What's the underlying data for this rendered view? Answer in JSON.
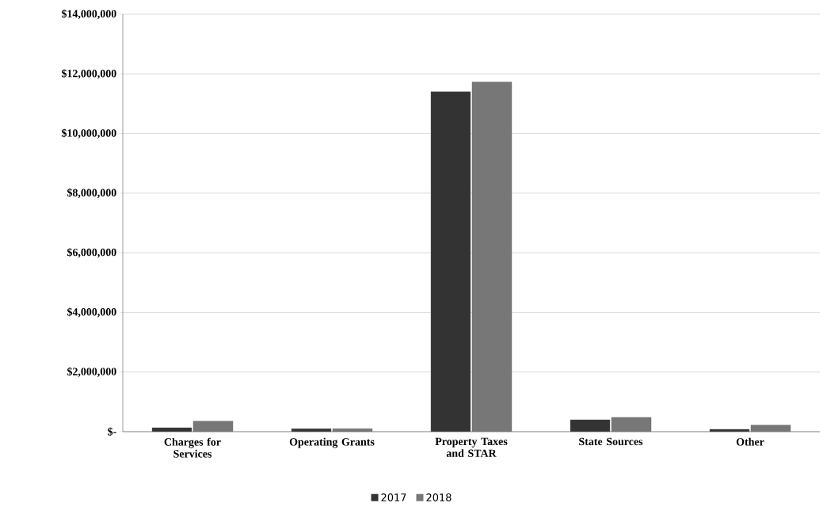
{
  "chart_data": {
    "type": "bar",
    "categories": [
      "Charges for Services",
      "Operating Grants",
      "Property Taxes and STAR",
      "State Sources",
      "Other"
    ],
    "series": [
      {
        "name": "2017",
        "color": "#333333",
        "values": [
          130000,
          100000,
          11400000,
          400000,
          80000
        ]
      },
      {
        "name": "2018",
        "color": "#777777",
        "values": [
          350000,
          100000,
          11730000,
          480000,
          220000
        ]
      }
    ],
    "ylim": [
      0,
      14000000
    ],
    "yticks": [
      {
        "value": 0,
        "label": "$-"
      },
      {
        "value": 2000000,
        "label": "$2,000,000"
      },
      {
        "value": 4000000,
        "label": "$4,000,000"
      },
      {
        "value": 6000000,
        "label": "$6,000,000"
      },
      {
        "value": 8000000,
        "label": "$8,000,000"
      },
      {
        "value": 10000000,
        "label": "$10,000,000"
      },
      {
        "value": 12000000,
        "label": "$12,000,000"
      },
      {
        "value": 14000000,
        "label": "$14,000,000"
      }
    ],
    "grid": "y",
    "legend": "bottom"
  }
}
